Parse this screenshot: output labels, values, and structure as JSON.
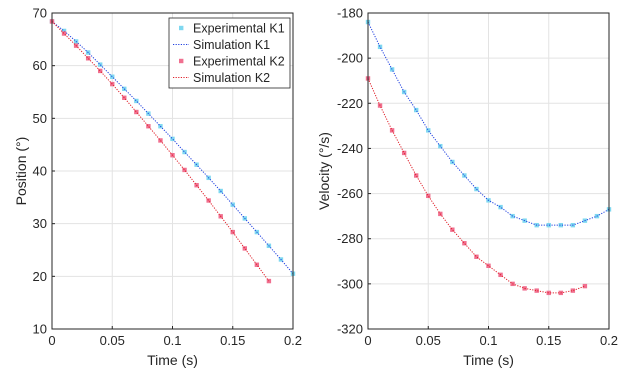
{
  "chart_data": [
    {
      "type": "line",
      "xlabel": "Time (s)",
      "ylabel": "Position (°)",
      "xlim": [
        0,
        0.2
      ],
      "ylim": [
        10,
        70
      ],
      "xticks": [
        0,
        0.05,
        0.1,
        0.15,
        0.2
      ],
      "xtick_labels": [
        "0",
        "0.05",
        "0.1",
        "0.15",
        "0.2"
      ],
      "yticks": [
        10,
        20,
        30,
        40,
        50,
        60,
        70
      ],
      "ytick_labels": [
        "10",
        "20",
        "30",
        "40",
        "50",
        "60",
        "70"
      ],
      "grid": true,
      "legend": "top-right",
      "series": [
        {
          "name": "Experimental K1",
          "style": "markers",
          "color": "#7fd8f0",
          "x": [
            0,
            0.01,
            0.02,
            0.03,
            0.04,
            0.05,
            0.06,
            0.07,
            0.08,
            0.09,
            0.1,
            0.11,
            0.12,
            0.13,
            0.14,
            0.15,
            0.16,
            0.17,
            0.18,
            0.19,
            0.2
          ],
          "y": [
            68.4,
            66.6,
            64.6,
            62.5,
            60.2,
            57.9,
            55.6,
            53.3,
            50.9,
            48.5,
            46.1,
            43.6,
            41.2,
            38.7,
            36.2,
            33.6,
            31.0,
            28.4,
            25.8,
            23.2,
            20.5
          ]
        },
        {
          "name": "Simulation K1",
          "style": "dotted",
          "color": "#1f3fe0",
          "x": [
            0,
            0.01,
            0.02,
            0.03,
            0.04,
            0.05,
            0.06,
            0.07,
            0.08,
            0.09,
            0.1,
            0.11,
            0.12,
            0.13,
            0.14,
            0.15,
            0.16,
            0.17,
            0.18,
            0.19,
            0.2
          ],
          "y": [
            68.4,
            66.6,
            64.6,
            62.5,
            60.2,
            57.9,
            55.6,
            53.3,
            50.9,
            48.5,
            46.1,
            43.6,
            41.2,
            38.7,
            36.2,
            33.6,
            31.0,
            28.4,
            25.8,
            23.2,
            20.5
          ]
        },
        {
          "name": "Experimental K2",
          "style": "markers",
          "color": "#f07090",
          "x": [
            0,
            0.01,
            0.02,
            0.03,
            0.04,
            0.05,
            0.06,
            0.07,
            0.08,
            0.09,
            0.1,
            0.11,
            0.12,
            0.13,
            0.14,
            0.15,
            0.16,
            0.17,
            0.18
          ],
          "y": [
            68.4,
            66.1,
            63.8,
            61.4,
            59.0,
            56.5,
            53.9,
            51.2,
            48.5,
            45.8,
            43.0,
            40.2,
            37.3,
            34.4,
            31.4,
            28.4,
            25.3,
            22.2,
            19.1
          ]
        },
        {
          "name": "Simulation K2",
          "style": "dotted",
          "color": "#e0202a",
          "x": [
            0,
            0.01,
            0.02,
            0.03,
            0.04,
            0.05,
            0.06,
            0.07,
            0.08,
            0.09,
            0.1,
            0.11,
            0.12,
            0.13,
            0.14,
            0.15,
            0.16,
            0.17,
            0.18
          ],
          "y": [
            68.4,
            66.1,
            63.8,
            61.4,
            59.0,
            56.5,
            53.9,
            51.2,
            48.5,
            45.8,
            43.0,
            40.2,
            37.3,
            34.4,
            31.4,
            28.4,
            25.3,
            22.2,
            19.1
          ]
        }
      ]
    },
    {
      "type": "line",
      "xlabel": "Time (s)",
      "ylabel": "Velocity (°/s)",
      "xlim": [
        0,
        0.2
      ],
      "ylim": [
        -320,
        -180
      ],
      "xticks": [
        0,
        0.05,
        0.1,
        0.15,
        0.2
      ],
      "xtick_labels": [
        "0",
        "0.05",
        "0.1",
        "0.15",
        "0.2"
      ],
      "yticks": [
        -320,
        -300,
        -280,
        -260,
        -240,
        -220,
        -200,
        -180
      ],
      "ytick_labels": [
        "-320",
        "-300",
        "-280",
        "-260",
        "-240",
        "-220",
        "-200",
        "-180"
      ],
      "grid": true,
      "series": [
        {
          "name": "Experimental K1",
          "style": "markers",
          "color": "#7fd8f0",
          "x": [
            0,
            0.01,
            0.02,
            0.03,
            0.04,
            0.05,
            0.06,
            0.07,
            0.08,
            0.09,
            0.1,
            0.11,
            0.12,
            0.13,
            0.14,
            0.15,
            0.16,
            0.17,
            0.18,
            0.19,
            0.2
          ],
          "y": [
            -184,
            -195,
            -205,
            -215,
            -223,
            -232,
            -239,
            -246,
            -252,
            -258,
            -263,
            -266,
            -270,
            -272,
            -274,
            -274,
            -274,
            -274,
            -272,
            -270,
            -267
          ]
        },
        {
          "name": "Simulation K1",
          "style": "dotted",
          "color": "#1f3fe0",
          "x": [
            0,
            0.01,
            0.02,
            0.03,
            0.04,
            0.05,
            0.06,
            0.07,
            0.08,
            0.09,
            0.1,
            0.11,
            0.12,
            0.13,
            0.14,
            0.15,
            0.16,
            0.17,
            0.18,
            0.19,
            0.2
          ],
          "y": [
            -184,
            -195,
            -205,
            -215,
            -223,
            -232,
            -239,
            -246,
            -252,
            -258,
            -263,
            -266,
            -270,
            -272,
            -274,
            -274,
            -274,
            -274,
            -272,
            -270,
            -267
          ]
        },
        {
          "name": "Experimental K2",
          "style": "markers",
          "color": "#f07090",
          "x": [
            0,
            0.01,
            0.02,
            0.03,
            0.04,
            0.05,
            0.06,
            0.07,
            0.08,
            0.09,
            0.1,
            0.11,
            0.12,
            0.13,
            0.14,
            0.15,
            0.16,
            0.17,
            0.18
          ],
          "y": [
            -209,
            -221,
            -232,
            -242,
            -252,
            -261,
            -269,
            -276,
            -282,
            -288,
            -292,
            -296,
            -300,
            -302,
            -303,
            -304,
            -304,
            -303,
            -301
          ]
        },
        {
          "name": "Simulation K2",
          "style": "dotted",
          "color": "#e0202a",
          "x": [
            0,
            0.01,
            0.02,
            0.03,
            0.04,
            0.05,
            0.06,
            0.07,
            0.08,
            0.09,
            0.1,
            0.11,
            0.12,
            0.13,
            0.14,
            0.15,
            0.16,
            0.17,
            0.18
          ],
          "y": [
            -209,
            -221,
            -232,
            -242,
            -252,
            -261,
            -269,
            -276,
            -282,
            -288,
            -292,
            -296,
            -300,
            -302,
            -303,
            -304,
            -304,
            -303,
            -301
          ]
        }
      ]
    }
  ]
}
